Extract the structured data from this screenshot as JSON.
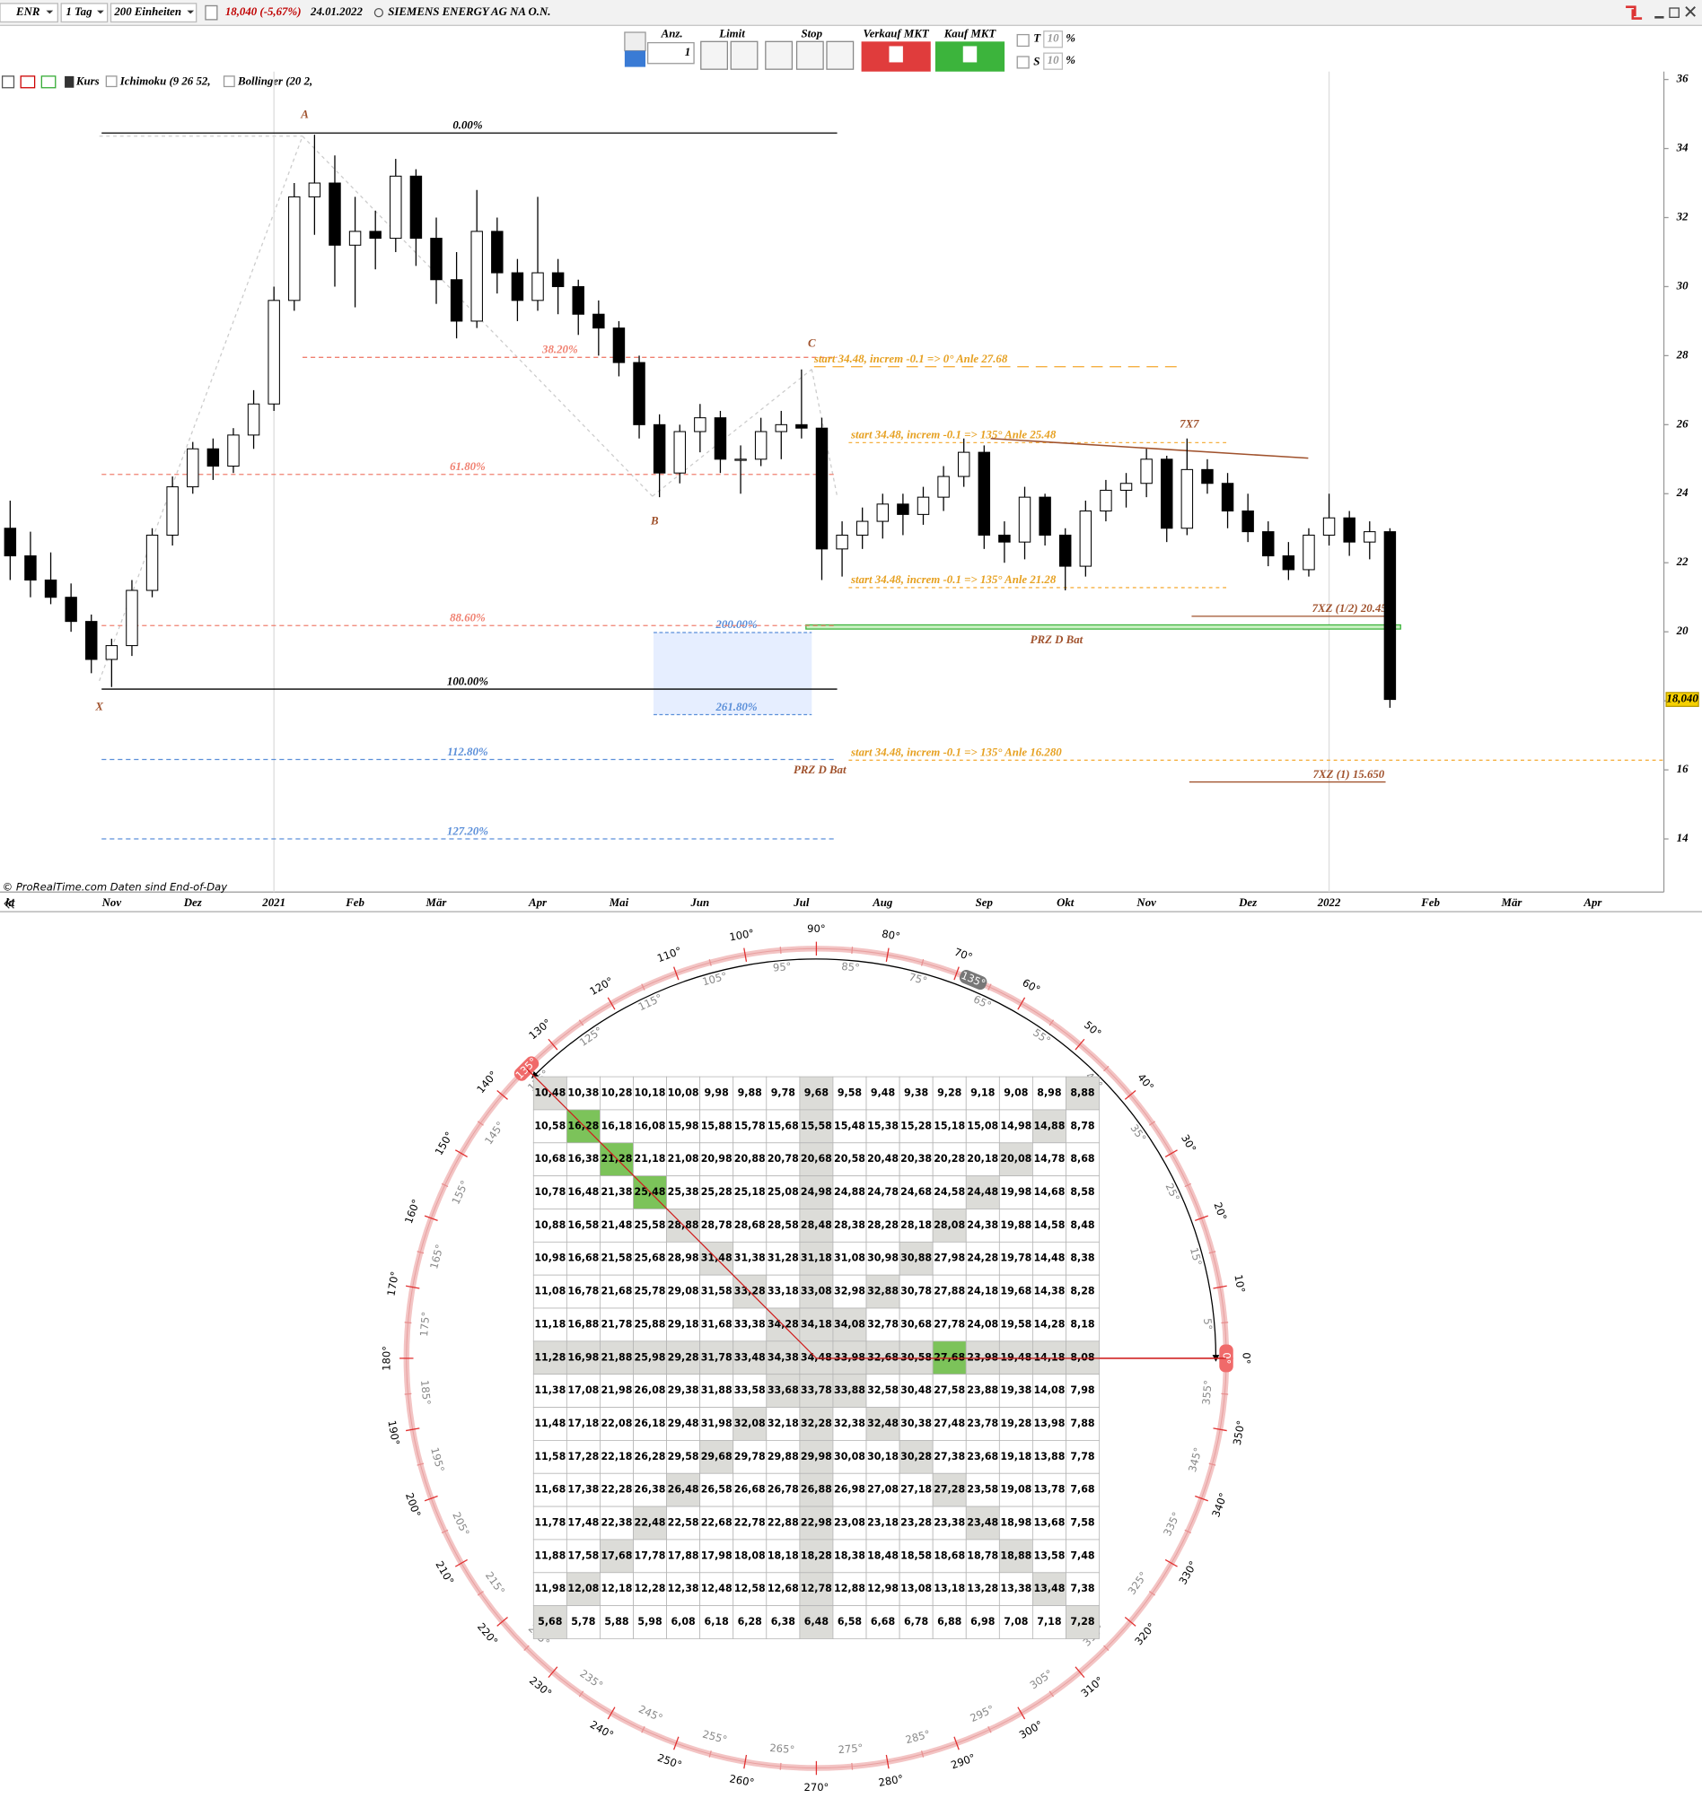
{
  "toolbar": {
    "symbol": "ENR",
    "interval": "1 Tag",
    "units": "200 Einheiten",
    "price_change": "18,040 (-5,67%)",
    "date": "24.01.2022",
    "name": "SIEMENS ENERGY AG NA O.N.",
    "qty_label": "Anz.",
    "qty": "1",
    "limit": "Limit",
    "stop": "Stop",
    "sell": "Verkauf MKT",
    "buy": "Kauf MKT",
    "t_label": "T",
    "t_value": "10",
    "t_percent": "%",
    "s_label": "S",
    "s_value": "10",
    "s_percent": "%"
  },
  "legend": [
    "Kurs",
    "Ichimoku (9 26 52,",
    "Bollinger (20 2,"
  ],
  "credit": "© ProRealTime.com  Daten sind End-of-Day",
  "chart_data": {
    "type": "candlestick",
    "categories": [
      "kt",
      null,
      null,
      null,
      null,
      "Nov",
      null,
      null,
      null,
      "Dez",
      null,
      null,
      null,
      "2021",
      null,
      null,
      null,
      "Feb",
      null,
      null,
      null,
      "Mär",
      null,
      null,
      null,
      null,
      "Apr",
      null,
      null,
      null,
      "Mai",
      null,
      null,
      null,
      "Jun",
      null,
      null,
      null,
      null,
      "Jul",
      null,
      null,
      null,
      "Aug",
      null,
      null,
      null,
      null,
      "Sep",
      null,
      null,
      null,
      "Okt",
      null,
      null,
      null,
      "Nov",
      null,
      null,
      null,
      null,
      "Dez",
      null,
      null,
      null,
      "2022",
      null,
      null,
      null,
      null,
      "Feb",
      null,
      null,
      null,
      "Mär",
      null,
      null,
      null,
      "Apr",
      null,
      null,
      null
    ],
    "open": [
      23.0,
      22.2,
      21.5,
      21.0,
      20.3,
      19.2,
      19.6,
      21.2,
      22.8,
      24.2,
      25.3,
      24.8,
      25.7,
      26.6,
      29.6,
      32.6,
      33.0,
      31.2,
      31.6,
      31.4,
      33.2,
      31.4,
      30.2,
      29.0,
      31.6,
      30.4,
      29.6,
      30.4,
      30.0,
      29.2,
      28.8,
      27.8,
      26.0,
      24.6,
      25.8,
      26.2,
      25.0,
      25.0,
      25.8,
      26.0,
      25.9,
      22.4,
      22.8,
      23.2,
      23.7,
      23.4,
      23.9,
      24.5,
      25.2,
      22.8,
      22.6,
      23.9,
      22.8,
      21.9,
      23.5,
      24.1,
      24.3,
      25.0,
      23.0,
      24.7,
      24.3,
      23.5,
      22.9,
      22.2,
      21.8,
      22.8,
      23.3,
      22.6,
      22.9,
      null,
      null,
      null,
      null,
      null,
      null,
      null,
      null,
      null,
      null,
      null,
      null,
      null
    ],
    "high": [
      23.8,
      22.9,
      22.3,
      21.4,
      20.5,
      19.8,
      21.5,
      23.0,
      24.5,
      25.5,
      25.6,
      25.9,
      27.0,
      30.0,
      33.0,
      34.4,
      33.8,
      32.6,
      32.2,
      33.7,
      33.4,
      32.0,
      31.0,
      32.8,
      32.0,
      30.8,
      32.6,
      30.8,
      30.2,
      29.6,
      29.0,
      28.0,
      26.3,
      26.0,
      26.6,
      26.4,
      25.4,
      26.2,
      26.4,
      27.6,
      26.2,
      23.2,
      23.6,
      24.0,
      24.0,
      24.2,
      24.8,
      25.6,
      25.4,
      23.2,
      24.2,
      24.0,
      23.0,
      23.8,
      24.4,
      24.6,
      25.3,
      25.1,
      25.6,
      25.0,
      24.6,
      24.0,
      23.2,
      22.6,
      23.0,
      24.0,
      23.5,
      23.2,
      23.0,
      null,
      null,
      null,
      null,
      null,
      null,
      null,
      null,
      null,
      null,
      null,
      null,
      null
    ],
    "low": [
      21.5,
      21.0,
      20.8,
      20.0,
      18.8,
      18.4,
      19.3,
      21.0,
      22.5,
      24.0,
      24.4,
      24.6,
      25.3,
      26.4,
      29.3,
      31.5,
      30.0,
      29.4,
      30.5,
      31.0,
      30.6,
      29.5,
      28.5,
      28.8,
      29.8,
      29.0,
      29.3,
      29.2,
      28.6,
      28.0,
      27.4,
      25.6,
      23.9,
      24.3,
      25.2,
      24.6,
      24.0,
      24.8,
      25.0,
      25.6,
      21.5,
      21.6,
      22.4,
      22.7,
      22.8,
      23.1,
      23.5,
      24.2,
      22.4,
      22.0,
      22.1,
      22.5,
      21.2,
      21.6,
      23.2,
      23.6,
      23.9,
      22.6,
      22.8,
      24.0,
      23.0,
      22.6,
      21.9,
      21.5,
      21.6,
      22.5,
      22.2,
      22.1,
      17.8,
      null,
      null,
      null,
      null,
      null,
      null,
      null,
      null,
      null,
      null,
      null,
      null,
      null
    ],
    "close": [
      22.2,
      21.5,
      21.0,
      20.3,
      19.2,
      19.6,
      21.2,
      22.8,
      24.2,
      25.3,
      24.8,
      25.7,
      26.6,
      29.6,
      32.6,
      33.0,
      31.2,
      31.6,
      31.4,
      33.2,
      31.4,
      30.2,
      29.0,
      31.6,
      30.4,
      29.6,
      30.4,
      30.0,
      29.2,
      28.8,
      27.8,
      26.0,
      24.6,
      25.8,
      26.2,
      25.0,
      25.0,
      25.8,
      26.0,
      25.9,
      22.4,
      22.8,
      23.2,
      23.7,
      23.4,
      23.9,
      24.5,
      25.2,
      22.8,
      22.6,
      23.9,
      22.8,
      21.9,
      23.5,
      24.1,
      24.3,
      25.0,
      23.0,
      24.7,
      24.3,
      23.5,
      22.9,
      22.2,
      21.8,
      22.8,
      23.3,
      22.6,
      22.9,
      18.04,
      null,
      null,
      null,
      null,
      null,
      null,
      null,
      null,
      null,
      null,
      null,
      null,
      null
    ],
    "color_up": "#ffffff",
    "color_down": "#000000",
    "ylim": [
      12.46,
      36.23
    ],
    "yticks": [
      14,
      16,
      18,
      20,
      22,
      24,
      26,
      28,
      30,
      32,
      34,
      36
    ],
    "last_price": {
      "value": 18.04,
      "label": "18,040"
    },
    "levels": [
      {
        "value": 34.45,
        "label": "0.00%",
        "color": "#000000",
        "dash": "none"
      },
      {
        "value": 27.95,
        "label": "38.20%",
        "color": "#f08070",
        "dash": "4 3"
      },
      {
        "value": 24.56,
        "label": "61.80%",
        "color": "#f08070",
        "dash": "4 3"
      },
      {
        "value": 20.18,
        "label": "88.60%",
        "color": "#f08070",
        "dash": "4 3"
      },
      {
        "value": 18.34,
        "label": "100.00%",
        "color": "#000000",
        "dash": "none"
      },
      {
        "value": 16.3,
        "label": "112.80%",
        "color": "#5b8fd9",
        "dash": "4 3"
      },
      {
        "value": 14.0,
        "label": "127.20%",
        "color": "#5b8fd9",
        "dash": "4 3"
      },
      {
        "value": 27.68,
        "label": "start 34.48, increm -0.1 => 0° Anle 27.68",
        "color": "#f5b041",
        "dash": "10 6"
      },
      {
        "value": 25.48,
        "label": "start 34.48, increm -0.1 => 135° Anle 25.48",
        "color": "#f5b041",
        "dash": "3 3"
      },
      {
        "value": 21.28,
        "label": "start 34.48, increm -0.1 => 135° Anle 21.28",
        "color": "#f5b041",
        "dash": "3 3"
      },
      {
        "value": 16.28,
        "label": "start 34.48, increm -0.1 => 135° Anle 16.280",
        "color": "#f5b041",
        "dash": "3 3"
      },
      {
        "value": 20.45,
        "label": "7XZ (1/2) 20.45",
        "color": "#a0522d",
        "dash": "none"
      },
      {
        "value": 15.65,
        "label": "7XZ (1) 15.650",
        "color": "#a0522d",
        "dash": "none"
      }
    ],
    "zones": [
      {
        "top": 19.98,
        "bottom": 17.6,
        "top_label": "200.00%",
        "bottom_label": "261.80%",
        "color": "#e6eeff",
        "border": "#5b8fd9"
      },
      {
        "top": 20.2,
        "bottom": 20.08,
        "label": "PRZ D Bat",
        "color": "#c9f0c2",
        "border": "#3cb43c"
      }
    ],
    "trendline": {
      "values": [
        25.6,
        25.03
      ],
      "color": "#a0522d"
    },
    "annotations": [
      "A",
      "B",
      "C",
      "X",
      "7X7",
      "PRZ D Bat"
    ]
  },
  "dial": {
    "ticks": [
      {
        "value": 0,
        "label": "0°"
      },
      {
        "value": 5,
        "label": "5°"
      },
      {
        "value": 10,
        "label": "10°"
      },
      {
        "value": 15,
        "label": "15°"
      },
      {
        "value": 20,
        "label": "20°"
      },
      {
        "value": 25,
        "label": "25°"
      },
      {
        "value": 30,
        "label": "30°"
      },
      {
        "value": 35,
        "label": "35°"
      },
      {
        "value": 40,
        "label": "40°"
      },
      {
        "value": 45,
        "label": "45°"
      },
      {
        "value": 50,
        "label": "50°"
      },
      {
        "value": 55,
        "label": "55°"
      },
      {
        "value": 60,
        "label": "60°"
      },
      {
        "value": 65,
        "label": "65°"
      },
      {
        "value": 70,
        "label": "70°"
      },
      {
        "value": 75,
        "label": "75°"
      },
      {
        "value": 80,
        "label": "80°"
      },
      {
        "value": 85,
        "label": "85°"
      },
      {
        "value": 90,
        "label": "90°"
      },
      {
        "value": 95,
        "label": "95°"
      },
      {
        "value": 100,
        "label": "100°"
      },
      {
        "value": 105,
        "label": "105°"
      },
      {
        "value": 110,
        "label": "110°"
      },
      {
        "value": 115,
        "label": "115°"
      },
      {
        "value": 120,
        "label": "120°"
      },
      {
        "value": 125,
        "label": "125°"
      },
      {
        "value": 130,
        "label": "130°"
      },
      {
        "value": 135,
        "label": "135°"
      },
      {
        "value": 140,
        "label": "140°"
      },
      {
        "value": 145,
        "label": "145°"
      },
      {
        "value": 150,
        "label": "150°"
      },
      {
        "value": 155,
        "label": "155°"
      },
      {
        "value": 160,
        "label": "160°"
      },
      {
        "value": 165,
        "label": "165°"
      },
      {
        "value": 170,
        "label": "170°"
      },
      {
        "value": 175,
        "label": "175°"
      },
      {
        "value": 180,
        "label": "180°"
      },
      {
        "value": 185,
        "label": "185°"
      },
      {
        "value": 190,
        "label": "190°"
      },
      {
        "value": 195,
        "label": "195°"
      },
      {
        "value": 200,
        "label": "200°"
      },
      {
        "value": 205,
        "label": "205°"
      },
      {
        "value": 210,
        "label": "210°"
      },
      {
        "value": 215,
        "label": "215°"
      },
      {
        "value": 220,
        "label": "220°"
      },
      {
        "value": 225,
        "label": "225°"
      },
      {
        "value": 230,
        "label": "230°"
      },
      {
        "value": 235,
        "label": "235°"
      },
      {
        "value": 240,
        "label": "240°"
      },
      {
        "value": 245,
        "label": "245°"
      },
      {
        "value": 250,
        "label": "250°"
      },
      {
        "value": 255,
        "label": "255°"
      },
      {
        "value": 260,
        "label": "260°"
      },
      {
        "value": 265,
        "label": "265°"
      },
      {
        "value": 270,
        "label": "270°"
      },
      {
        "value": 275,
        "label": "275°"
      },
      {
        "value": 280,
        "label": "280°"
      },
      {
        "value": 285,
        "label": "285°"
      },
      {
        "value": 290,
        "label": "290°"
      },
      {
        "value": 295,
        "label": "295°"
      },
      {
        "value": 300,
        "label": "300°"
      },
      {
        "value": 305,
        "label": "305°"
      },
      {
        "value": 310,
        "label": "310°"
      },
      {
        "value": 315,
        "label": "315°"
      },
      {
        "value": 320,
        "label": "320°"
      },
      {
        "value": 325,
        "label": "325°"
      },
      {
        "value": 330,
        "label": "330°"
      },
      {
        "value": 335,
        "label": "335°"
      },
      {
        "value": 340,
        "label": "340°"
      },
      {
        "value": 345,
        "label": "345°"
      },
      {
        "value": 350,
        "label": "350°"
      },
      {
        "value": 355,
        "label": "355°"
      }
    ],
    "start": {
      "value": 0,
      "label": "0°"
    },
    "end": {
      "value": 135,
      "label": "135°"
    },
    "span": {
      "value": 135,
      "label": "135°"
    }
  },
  "table": {
    "highlighted": [
      "16,28",
      "21,28",
      "25,48",
      "27,68"
    ],
    "rows": [
      [
        "10,48",
        "10,38",
        "10,28",
        "10,18",
        "10,08",
        "9,98",
        "9,88",
        "9,78",
        "9,68",
        "9,58",
        "9,48",
        "9,38",
        "9,28",
        "9,18",
        "9,08",
        "8,98",
        "8,88"
      ],
      [
        "10,58",
        "16,28",
        "16,18",
        "16,08",
        "15,98",
        "15,88",
        "15,78",
        "15,68",
        "15,58",
        "15,48",
        "15,38",
        "15,28",
        "15,18",
        "15,08",
        "14,98",
        "14,88",
        "8,78"
      ],
      [
        "10,68",
        "16,38",
        "21,28",
        "21,18",
        "21,08",
        "20,98",
        "20,88",
        "20,78",
        "20,68",
        "20,58",
        "20,48",
        "20,38",
        "20,28",
        "20,18",
        "20,08",
        "14,78",
        "8,68"
      ],
      [
        "10,78",
        "16,48",
        "21,38",
        "25,48",
        "25,38",
        "25,28",
        "25,18",
        "25,08",
        "24,98",
        "24,88",
        "24,78",
        "24,68",
        "24,58",
        "24,48",
        "19,98",
        "14,68",
        "8,58"
      ],
      [
        "10,88",
        "16,58",
        "21,48",
        "25,58",
        "28,88",
        "28,78",
        "28,68",
        "28,58",
        "28,48",
        "28,38",
        "28,28",
        "28,18",
        "28,08",
        "24,38",
        "19,88",
        "14,58",
        "8,48"
      ],
      [
        "10,98",
        "16,68",
        "21,58",
        "25,68",
        "28,98",
        "31,48",
        "31,38",
        "31,28",
        "31,18",
        "31,08",
        "30,98",
        "30,88",
        "27,98",
        "24,28",
        "19,78",
        "14,48",
        "8,38"
      ],
      [
        "11,08",
        "16,78",
        "21,68",
        "25,78",
        "29,08",
        "31,58",
        "33,28",
        "33,18",
        "33,08",
        "32,98",
        "32,88",
        "30,78",
        "27,88",
        "24,18",
        "19,68",
        "14,38",
        "8,28"
      ],
      [
        "11,18",
        "16,88",
        "21,78",
        "25,88",
        "29,18",
        "31,68",
        "33,38",
        "34,28",
        "34,18",
        "34,08",
        "32,78",
        "30,68",
        "27,78",
        "24,08",
        "19,58",
        "14,28",
        "8,18"
      ],
      [
        "11,28",
        "16,98",
        "21,88",
        "25,98",
        "29,28",
        "31,78",
        "33,48",
        "34,38",
        "34,48",
        "33,98",
        "32,68",
        "30,58",
        "27,68",
        "23,98",
        "19,48",
        "14,18",
        "8,08"
      ],
      [
        "11,38",
        "17,08",
        "21,98",
        "26,08",
        "29,38",
        "31,88",
        "33,58",
        "33,68",
        "33,78",
        "33,88",
        "32,58",
        "30,48",
        "27,58",
        "23,88",
        "19,38",
        "14,08",
        "7,98"
      ],
      [
        "11,48",
        "17,18",
        "22,08",
        "26,18",
        "29,48",
        "31,98",
        "32,08",
        "32,18",
        "32,28",
        "32,38",
        "32,48",
        "30,38",
        "27,48",
        "23,78",
        "19,28",
        "13,98",
        "7,88"
      ],
      [
        "11,58",
        "17,28",
        "22,18",
        "26,28",
        "29,58",
        "29,68",
        "29,78",
        "29,88",
        "29,98",
        "30,08",
        "30,18",
        "30,28",
        "27,38",
        "23,68",
        "19,18",
        "13,88",
        "7,78"
      ],
      [
        "11,68",
        "17,38",
        "22,28",
        "26,38",
        "26,48",
        "26,58",
        "26,68",
        "26,78",
        "26,88",
        "26,98",
        "27,08",
        "27,18",
        "27,28",
        "23,58",
        "19,08",
        "13,78",
        "7,68"
      ],
      [
        "11,78",
        "17,48",
        "22,38",
        "22,48",
        "22,58",
        "22,68",
        "22,78",
        "22,88",
        "22,98",
        "23,08",
        "23,18",
        "23,28",
        "23,38",
        "23,48",
        "18,98",
        "13,68",
        "7,58"
      ],
      [
        "11,88",
        "17,58",
        "17,68",
        "17,78",
        "17,88",
        "17,98",
        "18,08",
        "18,18",
        "18,28",
        "18,38",
        "18,48",
        "18,58",
        "18,68",
        "18,78",
        "18,88",
        "13,58",
        "7,48"
      ],
      [
        "11,98",
        "12,08",
        "12,18",
        "12,28",
        "12,38",
        "12,48",
        "12,58",
        "12,68",
        "12,78",
        "12,88",
        "12,98",
        "13,08",
        "13,18",
        "13,28",
        "13,38",
        "13,48",
        "7,38"
      ],
      [
        "5,68",
        "5,78",
        "5,88",
        "5,98",
        "6,08",
        "6,18",
        "6,28",
        "6,38",
        "6,48",
        "6,58",
        "6,68",
        "6,78",
        "6,88",
        "6,98",
        "7,08",
        "7,18",
        "7,28"
      ]
    ]
  }
}
